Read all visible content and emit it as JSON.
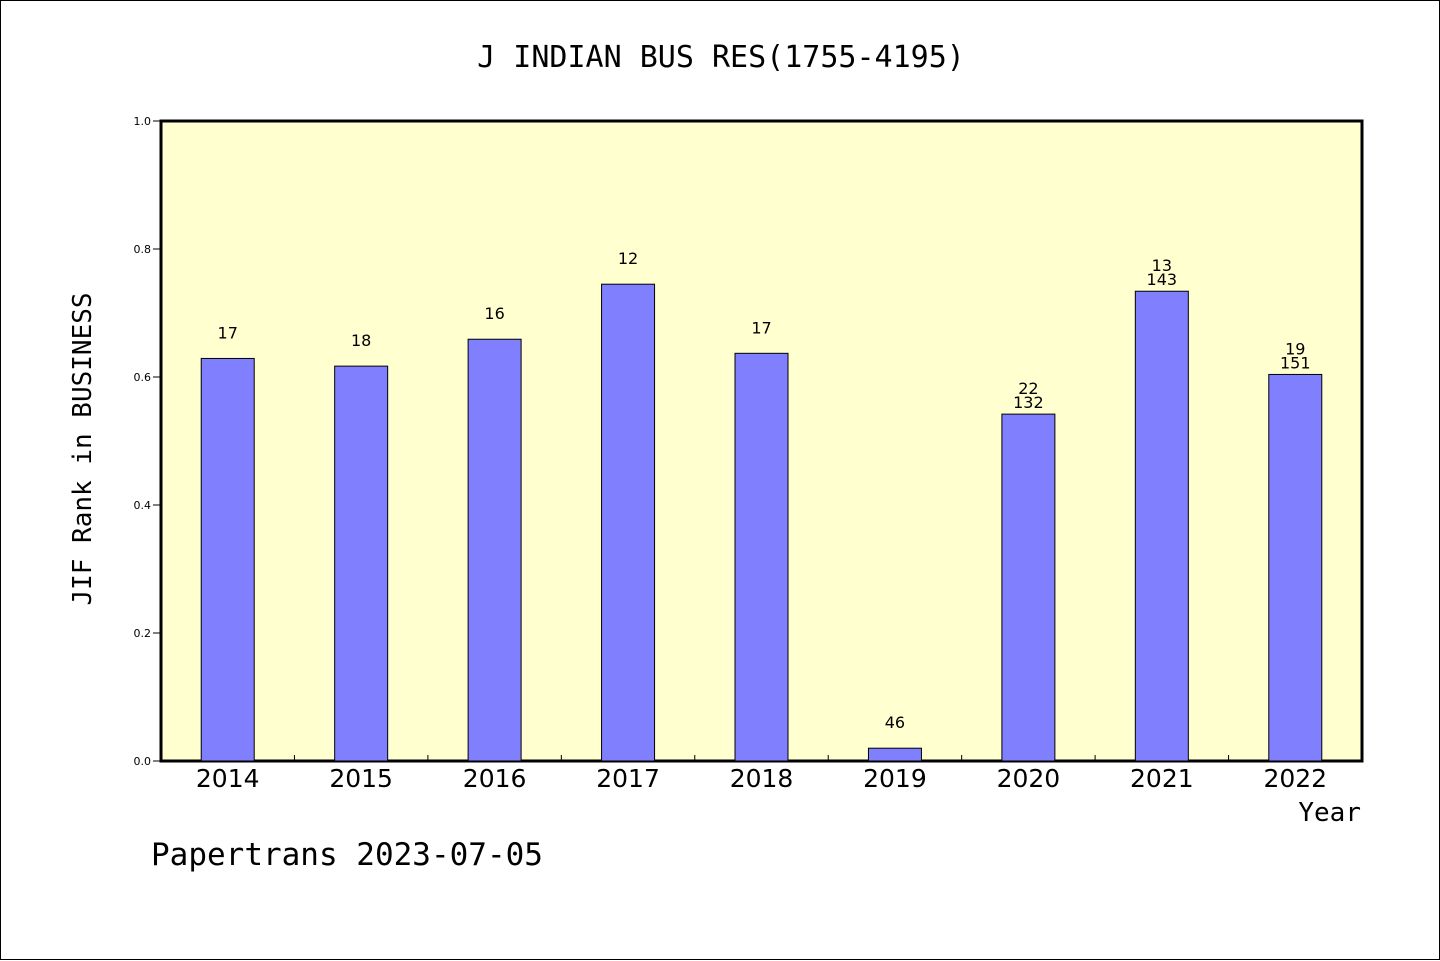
{
  "chart_data": {
    "type": "bar",
    "title": "J INDIAN BUS RES(1755-4195)",
    "xlabel": "Year",
    "ylabel": "JIF Rank in BUSINESS",
    "footer": "Papertrans 2023-07-05",
    "categories": [
      "2014",
      "2015",
      "2016",
      "2017",
      "2018",
      "2019",
      "2020",
      "2021",
      "2022"
    ],
    "values": [
      0.629,
      0.617,
      0.659,
      0.745,
      0.637,
      0.02,
      0.542,
      0.734,
      0.604
    ],
    "labels_top": [
      "17",
      "18",
      "16",
      "12",
      "17",
      "46",
      "22",
      "13",
      "19"
    ],
    "labels_second": [
      "",
      "",
      "",
      "",
      "",
      "",
      "132",
      "143",
      "151"
    ],
    "ylim": [
      0,
      1.0
    ],
    "yticks": [
      "0.0",
      "0.2",
      "0.4",
      "0.6",
      "0.8",
      "1.0"
    ],
    "grid": false,
    "legend": "none",
    "colors": {
      "plot_background": "#ffffd0",
      "bar_fill": "#8080ff",
      "bar_stroke": "#000000"
    }
  }
}
